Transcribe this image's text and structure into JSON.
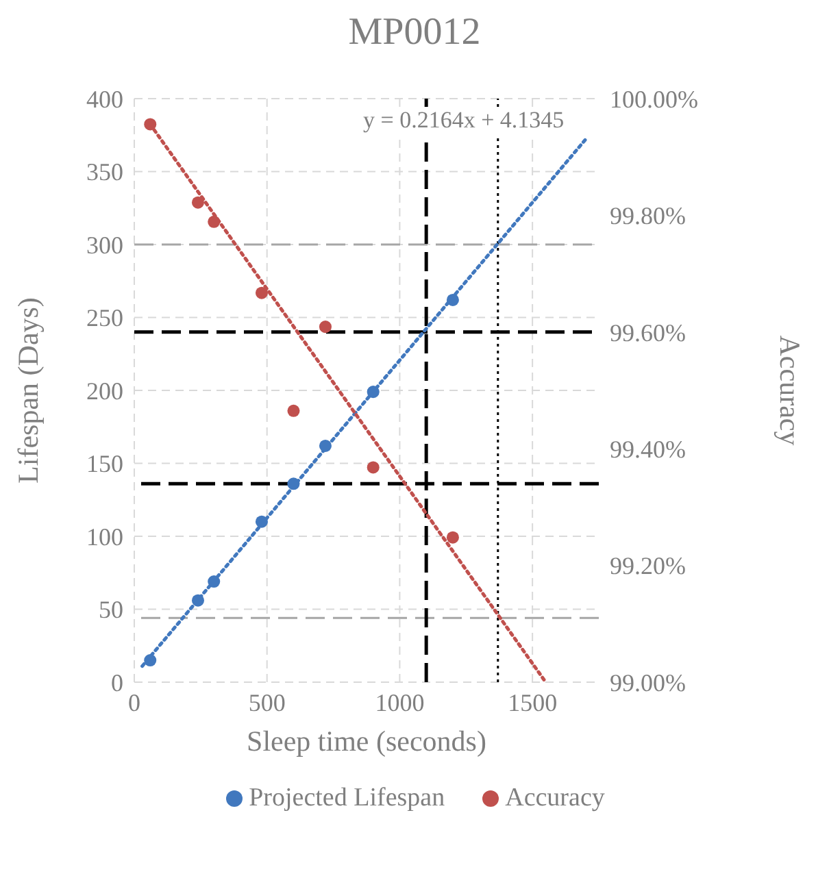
{
  "chart_data": {
    "type": "scatter",
    "title": "MP0012",
    "xlabel": "Sleep time (seconds)",
    "ylabel": "Lifespan (Days)",
    "y2label": "Accuracy",
    "annotations": [
      "y = 0.2164x + 4.1345"
    ],
    "xlim": [
      0,
      1750
    ],
    "xticks": [
      0,
      500,
      1000,
      1500
    ],
    "ylim": [
      0,
      400
    ],
    "yticks": [
      0,
      50,
      100,
      150,
      200,
      250,
      300,
      350,
      400
    ],
    "y2lim": [
      99,
      100
    ],
    "y2ticks": [
      {
        "value": 99,
        "label": "99.00%"
      },
      {
        "value": 99.2,
        "label": "99.20%"
      },
      {
        "value": 99.4,
        "label": "99.40%"
      },
      {
        "value": 99.6,
        "label": "99.60%"
      },
      {
        "value": 99.8,
        "label": "99.80%"
      },
      {
        "value": 100,
        "label": "100.00%"
      }
    ],
    "series": [
      {
        "name": "Projected Lifespan",
        "color": "#4178be",
        "marker": "circle",
        "x": [
          60,
          240,
          300,
          480,
          600,
          720,
          900,
          1200
        ],
        "values": [
          15,
          56,
          69,
          110,
          136,
          162,
          199,
          262
        ]
      },
      {
        "name": "Accuracy",
        "axis": "y2",
        "color": "#c0504d",
        "marker": "circle",
        "x": [
          60,
          240,
          300,
          480,
          600,
          720,
          900,
          1200
        ],
        "values": [
          99.956,
          99.822,
          99.789,
          99.667,
          99.465,
          99.609,
          99.368,
          99.248
        ]
      },
      {
        "type": "line",
        "color": "#4178be",
        "marker": "none",
        "line_style": "dotted",
        "x": [
          30,
          1700
        ],
        "values": [
          11,
          372
        ]
      },
      {
        "type": "line",
        "axis": "y2",
        "color": "#c0504d",
        "marker": "none",
        "line_style": "dotted",
        "x": [
          60,
          1550
        ],
        "values": [
          99.956,
          99.0
        ]
      }
    ],
    "ref_lines": [
      {
        "axis": "y",
        "value": 240,
        "color": "#000000",
        "line_style": "dashed"
      },
      {
        "axis": "y",
        "value": 300,
        "color": "#a6a6a6",
        "line_style": "dashed"
      },
      {
        "axis": "y2",
        "value": 99.34,
        "color": "#000000",
        "line_style": "dashed"
      },
      {
        "axis": "y2",
        "value": 99.11,
        "color": "#a6a6a6",
        "line_style": "dashed"
      },
      {
        "axis": "x",
        "value": 1100,
        "color": "#000000",
        "line_style": "dashed"
      },
      {
        "axis": "x",
        "value": 1370,
        "color": "#000000",
        "line_style": "dotted"
      }
    ],
    "grid": true,
    "legend": "bottom"
  }
}
